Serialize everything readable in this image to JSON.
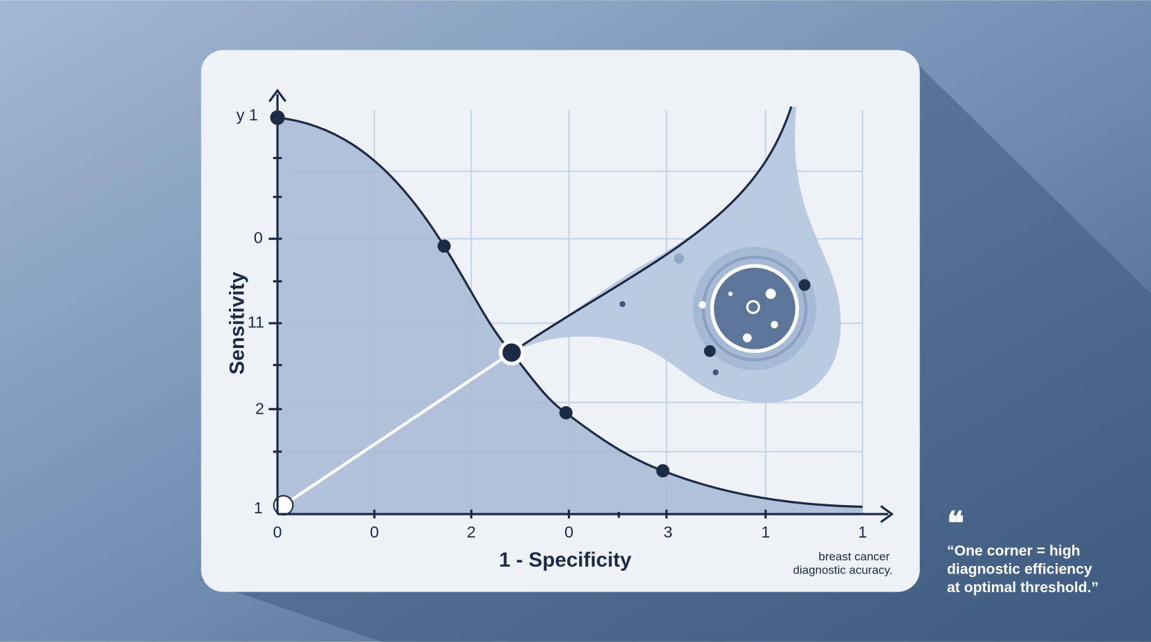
{
  "illustration": {
    "y_axis_title": "Sensitivity",
    "y_top_label": "y 1",
    "y_tick_labels": [
      "0",
      "11",
      "2",
      "1"
    ],
    "x_axis_title": "1 - Specificity",
    "x_tick_labels": [
      "0",
      "0",
      "2",
      "0",
      "3",
      "1",
      "1"
    ],
    "caption": [
      "breast cancer",
      "diagnostic acuracy."
    ],
    "quote_mark": "❝",
    "quote": [
      "“One corner = high",
      "diagnostic efficiency",
      "at optimal threshold.”"
    ]
  }
}
